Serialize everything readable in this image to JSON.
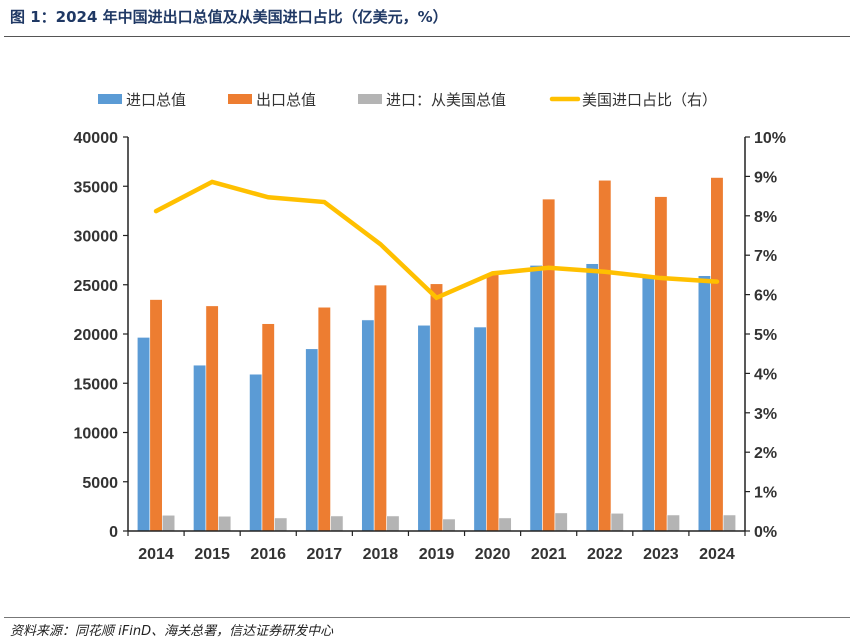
{
  "title": "图 1：2024 年中国进出口总值及从美国进口占比（亿美元，%）",
  "source": "资料来源：同花顺 iFinD、海关总署，信达证券研发中心",
  "chart_data": {
    "type": "bar+line",
    "categories": [
      "2014",
      "2015",
      "2016",
      "2017",
      "2018",
      "2019",
      "2020",
      "2021",
      "2022",
      "2023",
      "2024"
    ],
    "series": [
      {
        "name": "进口总值",
        "type": "bar",
        "axis": "left",
        "color": "#5b9bd5",
        "values": [
          19660,
          16840,
          15920,
          18500,
          21430,
          20890,
          20710,
          26970,
          27140,
          25780,
          25920
        ]
      },
      {
        "name": "出口总值",
        "type": "bar",
        "axis": "left",
        "color": "#ed7d31",
        "values": [
          23500,
          22860,
          21050,
          22720,
          24970,
          25100,
          26120,
          33700,
          35610,
          33950,
          35890
        ]
      },
      {
        "name": "进口：从美国总值",
        "type": "bar",
        "axis": "left",
        "color": "#b4b4b4",
        "values": [
          1600,
          1500,
          1330,
          1530,
          1530,
          1220,
          1330,
          1840,
          1800,
          1630,
          1630
        ]
      },
      {
        "name": "美国进口占比（右）",
        "type": "line",
        "axis": "right",
        "color": "#ffc000",
        "values": [
          8.12,
          8.86,
          8.47,
          8.35,
          7.28,
          5.92,
          6.54,
          6.68,
          6.58,
          6.42,
          6.33
        ]
      }
    ],
    "left_axis": {
      "ylim": [
        0,
        40000
      ],
      "ticks": [
        "0",
        "5000",
        "10000",
        "15000",
        "20000",
        "25000",
        "30000",
        "35000",
        "40000"
      ]
    },
    "right_axis": {
      "ylim": [
        0,
        10
      ],
      "ticks": [
        "0%",
        "1%",
        "2%",
        "3%",
        "4%",
        "5%",
        "6%",
        "7%",
        "8%",
        "9%",
        "10%"
      ]
    },
    "legend_position": "top",
    "grid": false
  }
}
